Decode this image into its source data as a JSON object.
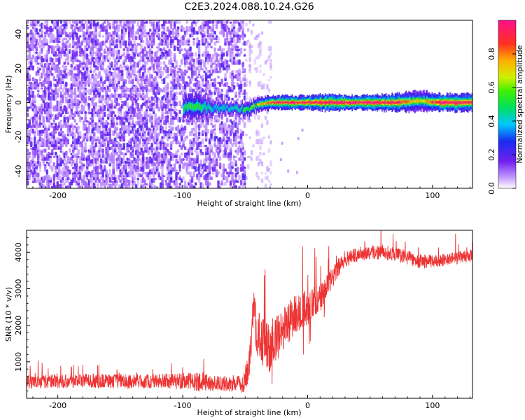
{
  "title": "C2E3.2024.088.10.24.G26",
  "colors": {
    "snr_line": "#ee3333",
    "spectrum_noise": "#6a1de0",
    "ridge_peak": "#ee2222",
    "ridge_mid": "#22dd22",
    "ridge_low": "#1a2cf0"
  },
  "chart_data": [
    {
      "type": "heatmap",
      "title": "C2E3.2024.088.10.24.G26",
      "xlabel": "Height of straight line (km)",
      "ylabel": "Frequency (Hz)",
      "xlim": [
        -225,
        132
      ],
      "ylim": [
        -50,
        48
      ],
      "xticks": [
        -200,
        -100,
        0,
        100
      ],
      "yticks": [
        -40,
        -20,
        0,
        20,
        40
      ],
      "grid": false,
      "colorbar": {
        "label": "Normalized spectral amplitude",
        "ticks": [
          0.0,
          0.2,
          0.4,
          0.6,
          0.8
        ],
        "tick_labels": [
          "0.0",
          "0.2",
          "0.4",
          "0.6",
          "0.8"
        ],
        "range": [
          0,
          1
        ],
        "colormap": "rainbow (white-violet-blue-cyan-green-yellow-orange-red-magenta)"
      },
      "features": {
        "noise_region_x": [
          -225,
          -50
        ],
        "sparse_noise_x": [
          -50,
          -30
        ],
        "signal_ridge": [
          {
            "x": -100,
            "freq": -3,
            "width_hz": 8,
            "amplitude": 0.4
          },
          {
            "x": -90,
            "freq": -2,
            "width_hz": 9,
            "amplitude": 0.45
          },
          {
            "x": -75,
            "freq": -3,
            "width_hz": 6,
            "amplitude": 0.3
          },
          {
            "x": -55,
            "freq": -4,
            "width_hz": 5,
            "amplitude": 0.35
          },
          {
            "x": -45,
            "freq": -3,
            "width_hz": 5,
            "amplitude": 0.5
          },
          {
            "x": -40,
            "freq": -1,
            "width_hz": 4,
            "amplitude": 0.55
          },
          {
            "x": -30,
            "freq": 0,
            "width_hz": 4,
            "amplitude": 0.8
          },
          {
            "x": -15,
            "freq": 0,
            "width_hz": 4,
            "amplitude": 0.9
          },
          {
            "x": 0,
            "freq": 0,
            "width_hz": 4,
            "amplitude": 0.85
          },
          {
            "x": 10,
            "freq": 0,
            "width_hz": 5,
            "amplitude": 0.9
          },
          {
            "x": 40,
            "freq": 0,
            "width_hz": 4,
            "amplitude": 0.95
          },
          {
            "x": 70,
            "freq": 0,
            "width_hz": 5,
            "amplitude": 0.9
          },
          {
            "x": 90,
            "freq": 1,
            "width_hz": 6,
            "amplitude": 0.55
          },
          {
            "x": 105,
            "freq": 0,
            "width_hz": 5,
            "amplitude": 0.9
          },
          {
            "x": 132,
            "freq": 0,
            "width_hz": 5,
            "amplitude": 0.85
          }
        ]
      }
    },
    {
      "type": "line",
      "xlabel": "Height of straight line (km)",
      "ylabel": "SNR (10 * v/v)",
      "xlim": [
        -225,
        132
      ],
      "ylim": [
        0,
        4600
      ],
      "xticks": [
        -200,
        -100,
        0,
        100
      ],
      "yticks": [
        1000,
        2000,
        3000,
        4000
      ],
      "grid": false,
      "series": [
        {
          "x": [
            -225,
            -200,
            -175,
            -150,
            -125,
            -100,
            -90,
            -80,
            -70,
            -60,
            -52,
            -48,
            -45,
            -43,
            -41,
            -38,
            -35,
            -30,
            -25,
            -20,
            -15,
            -10,
            -5,
            0,
            5,
            10,
            15,
            20,
            25,
            30,
            40,
            50,
            60,
            70,
            80,
            90,
            100,
            110,
            120,
            132
          ],
          "values": [
            450,
            470,
            480,
            470,
            470,
            470,
            450,
            430,
            400,
            380,
            400,
            700,
            1500,
            2800,
            1800,
            1600,
            1500,
            1300,
            1600,
            1900,
            2100,
            2300,
            2400,
            2500,
            2600,
            2700,
            3000,
            3300,
            3600,
            3800,
            3950,
            4000,
            4000,
            3950,
            3850,
            3750,
            3750,
            3800,
            3850,
            3900
          ],
          "noise_amplitude": [
            180,
            190,
            200,
            200,
            200,
            230,
            250,
            230,
            200,
            200,
            250,
            400,
            600,
            700,
            700,
            700,
            700,
            650,
            650,
            600,
            600,
            550,
            500,
            500,
            450,
            400,
            350,
            300,
            250,
            220,
            200,
            200,
            200,
            200,
            200,
            200,
            180,
            170,
            170,
            170
          ]
        }
      ]
    }
  ]
}
